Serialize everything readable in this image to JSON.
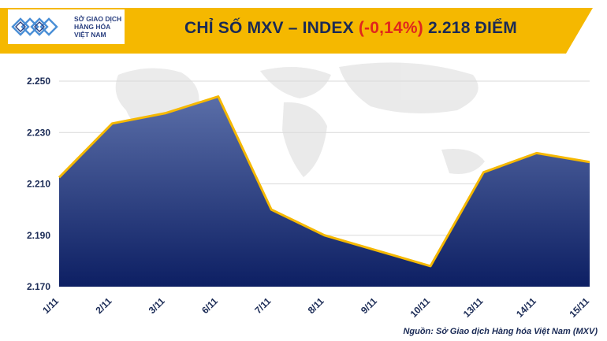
{
  "header": {
    "logo_line1": "SỞ GIAO DỊCH",
    "logo_line2": "HÀNG HÓA",
    "logo_line3": "VIỆT NAM",
    "title_prefix": "CHỈ SỐ MXV – INDEX ",
    "title_change": "(-0,14%)",
    "title_suffix": " 2.218 ĐIỂM"
  },
  "source": "Nguồn: Sở Giao dịch Hàng hóa Việt Nam (MXV)",
  "colors": {
    "banner": "#f5b800",
    "line": "#f5b800",
    "area_top": "#5a6ea8",
    "area_bottom": "#0d1f63",
    "negative": "#e0261d"
  },
  "chart_data": {
    "type": "area",
    "categories": [
      "1/11",
      "2/11",
      "3/11",
      "6/11",
      "7/11",
      "8/11",
      "9/11",
      "10/11",
      "13/11",
      "14/11",
      "15/11"
    ],
    "values": [
      2212.5,
      2233.5,
      2237.5,
      2244,
      2200,
      2190,
      2184,
      2178,
      2214.5,
      2222,
      2218.5
    ],
    "yticks": [
      "2.170",
      "2.190",
      "2.210",
      "2.230",
      "2.250"
    ],
    "ylim": [
      2170,
      2250
    ],
    "grid": true
  }
}
